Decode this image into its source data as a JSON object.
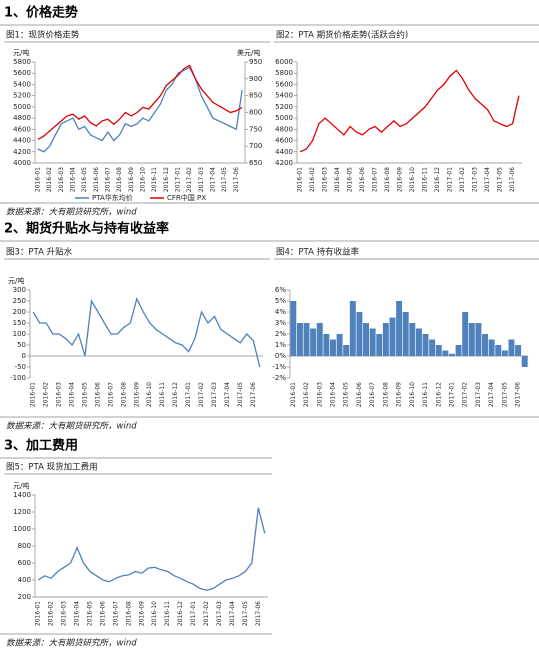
{
  "sections": [
    {
      "heading": "1、价格走势",
      "source": "数据来源：大有期货研究所，wind"
    },
    {
      "heading": "2、期货升贴水与持有收益率",
      "source": "数据来源：大有期货研究所，wind"
    },
    {
      "heading": "3、加工费用",
      "source": "数据来源：大有期货研究所，wind"
    }
  ],
  "chart_data": [
    {
      "type": "line",
      "title": "图1：现货价格走势",
      "y_label": "元/吨",
      "y2_label": "美元/吨",
      "legend": "bottom",
      "categories": [
        "2016-01",
        null,
        "2016-02",
        null,
        "2016-03",
        null,
        "2016-04",
        null,
        "2016-05",
        null,
        "2016-06",
        null,
        "2016-07",
        null,
        "2016-08",
        null,
        "2016-09",
        null,
        "2016-10",
        null,
        "2016-11",
        null,
        "2016-12",
        null,
        "2017-01",
        null,
        "2017-02",
        null,
        "2017-03",
        null,
        "2017-04",
        null,
        "2017-05",
        null,
        "2017-06",
        null
      ],
      "ylim": [
        4000,
        5800
      ],
      "yticks": [
        4000,
        4200,
        4400,
        4600,
        4800,
        5000,
        5200,
        5400,
        5600,
        5800
      ],
      "y2lim": [
        650,
        950
      ],
      "y2ticks": [
        650,
        700,
        750,
        800,
        850,
        900,
        950
      ],
      "series": [
        {
          "name": "PTA华东均价",
          "color": "#4f81bd",
          "values": [
            4250,
            4200,
            4300,
            4500,
            4700,
            4750,
            4800,
            4600,
            4650,
            4500,
            4450,
            4400,
            4550,
            4400,
            4500,
            4700,
            4650,
            4700,
            4800,
            4750,
            4900,
            5050,
            5300,
            5400,
            5600,
            5650,
            5700,
            5500,
            5200,
            5000,
            4800,
            4750,
            4700,
            4650,
            4600,
            5300
          ]
        },
        {
          "name": "CFR中国 PX",
          "color": "#e00000",
          "axis": "y2",
          "values": [
            720,
            730,
            745,
            760,
            775,
            790,
            795,
            780,
            790,
            770,
            760,
            775,
            780,
            765,
            780,
            800,
            790,
            800,
            815,
            810,
            830,
            850,
            880,
            895,
            910,
            930,
            940,
            900,
            870,
            850,
            830,
            820,
            810,
            800,
            805,
            815
          ]
        }
      ]
    },
    {
      "type": "line",
      "title": "图2：PTA 期货价格走势(活跃合约)",
      "categories": [
        "2016-01",
        null,
        "2016-02",
        null,
        "2016-03",
        null,
        "2016-04",
        null,
        "2016-05",
        null,
        "2016-06",
        null,
        "2016-07",
        null,
        "2016-08",
        null,
        "2016-09",
        null,
        "2016-10",
        null,
        "2016-11",
        null,
        "2016-12",
        null,
        "2017-01",
        null,
        "2017-02",
        null,
        "2017-03",
        null,
        "2017-04",
        null,
        "2017-05",
        null,
        "2017-06",
        null
      ],
      "ylim": [
        4200,
        6000
      ],
      "yticks": [
        4200,
        4400,
        4600,
        4800,
        5000,
        5200,
        5400,
        5600,
        5800,
        6000
      ],
      "series": [
        {
          "color": "#e00000",
          "values": [
            4400,
            4450,
            4600,
            4900,
            5000,
            4900,
            4800,
            4700,
            4850,
            4750,
            4700,
            4800,
            4850,
            4750,
            4850,
            4950,
            4850,
            4900,
            5000,
            5100,
            5200,
            5350,
            5500,
            5600,
            5750,
            5850,
            5700,
            5500,
            5350,
            5250,
            5150,
            4950,
            4900,
            4850,
            4900,
            5400
          ]
        }
      ]
    },
    {
      "type": "line",
      "title": "图3：PTA 升贴水",
      "y_label": "元/吨",
      "categories": [
        "2016-01",
        null,
        "2016-02",
        null,
        "2016-03",
        null,
        "2016-04",
        null,
        "2016-05",
        null,
        "2016-06",
        null,
        "2016-07",
        null,
        "2016-08",
        null,
        "2016-09",
        null,
        "2016-10",
        null,
        "2016-11",
        null,
        "2016-12",
        null,
        "2017-01",
        null,
        "2017-02",
        null,
        "2017-03",
        null,
        "2017-04",
        null,
        "2017-05",
        null,
        "2017-06",
        null
      ],
      "ylim": [
        -100,
        300
      ],
      "yticks": [
        -100,
        -50,
        0,
        50,
        100,
        150,
        200,
        250,
        300
      ],
      "series": [
        {
          "color": "#4f81bd",
          "values": [
            200,
            150,
            150,
            100,
            100,
            80,
            50,
            100,
            0,
            250,
            200,
            150,
            100,
            100,
            130,
            150,
            260,
            200,
            150,
            120,
            100,
            80,
            60,
            50,
            20,
            80,
            200,
            150,
            180,
            120,
            100,
            80,
            60,
            100,
            70,
            -50
          ]
        }
      ]
    },
    {
      "type": "bar",
      "title": "图4：PTA 持有收益率",
      "color": "#4f81bd",
      "categories": [
        "2016-01",
        null,
        "2016-02",
        null,
        "2016-03",
        null,
        "2016-04",
        null,
        "2016-05",
        null,
        "2016-06",
        null,
        "2016-07",
        null,
        "2016-08",
        null,
        "2016-09",
        null,
        "2016-10",
        null,
        "2016-11",
        null,
        "2016-12",
        null,
        "2017-01",
        null,
        "2017-02",
        null,
        "2017-03",
        null,
        "2017-04",
        null,
        "2017-05",
        null,
        "2017-06",
        null
      ],
      "ylim": [
        -2,
        6
      ],
      "yticks": [
        {
          "value": -2,
          "label": "-2%"
        },
        {
          "value": -1,
          "label": "-1%"
        },
        {
          "value": 0,
          "label": "0%"
        },
        {
          "value": 1,
          "label": "1%"
        },
        {
          "value": 2,
          "label": "2%"
        },
        {
          "value": 3,
          "label": "3%"
        },
        {
          "value": 4,
          "label": "4%"
        },
        {
          "value": 5,
          "label": "5%"
        },
        {
          "value": 6,
          "label": "6%"
        }
      ],
      "values": [
        5,
        3,
        3,
        2.5,
        3,
        2,
        1.5,
        2,
        1,
        5,
        4,
        3,
        2.5,
        2,
        3,
        3.5,
        5,
        4,
        3,
        2.5,
        2,
        1.5,
        1,
        0.5,
        0.2,
        1,
        4,
        3,
        3,
        2,
        1.5,
        1,
        0.5,
        1.5,
        1,
        -1
      ]
    },
    {
      "type": "line",
      "title": "图5：PTA 现货加工费用",
      "y_label": "元/吨",
      "categories": [
        "2016-01",
        null,
        "2016-02",
        null,
        "2016-03",
        null,
        "2016-04",
        null,
        "2016-05",
        null,
        "2016-06",
        null,
        "2016-07",
        null,
        "2016-08",
        null,
        "2016-09",
        null,
        "2016-10",
        null,
        "2016-11",
        null,
        "2016-12",
        null,
        "2017-01",
        null,
        "2017-02",
        null,
        "2017-03",
        null,
        "2017-04",
        null,
        "2017-05",
        null,
        "2017-06",
        null
      ],
      "ylim": [
        200,
        1400
      ],
      "yticks": [
        200,
        400,
        600,
        800,
        1000,
        1200,
        1400
      ],
      "series": [
        {
          "color": "#4f81bd",
          "values": [
            400,
            450,
            420,
            500,
            550,
            600,
            780,
            600,
            500,
            450,
            400,
            380,
            420,
            450,
            460,
            500,
            480,
            540,
            550,
            520,
            500,
            450,
            420,
            380,
            350,
            300,
            280,
            300,
            350,
            400,
            420,
            450,
            500,
            600,
            1250,
            950
          ]
        }
      ]
    }
  ]
}
